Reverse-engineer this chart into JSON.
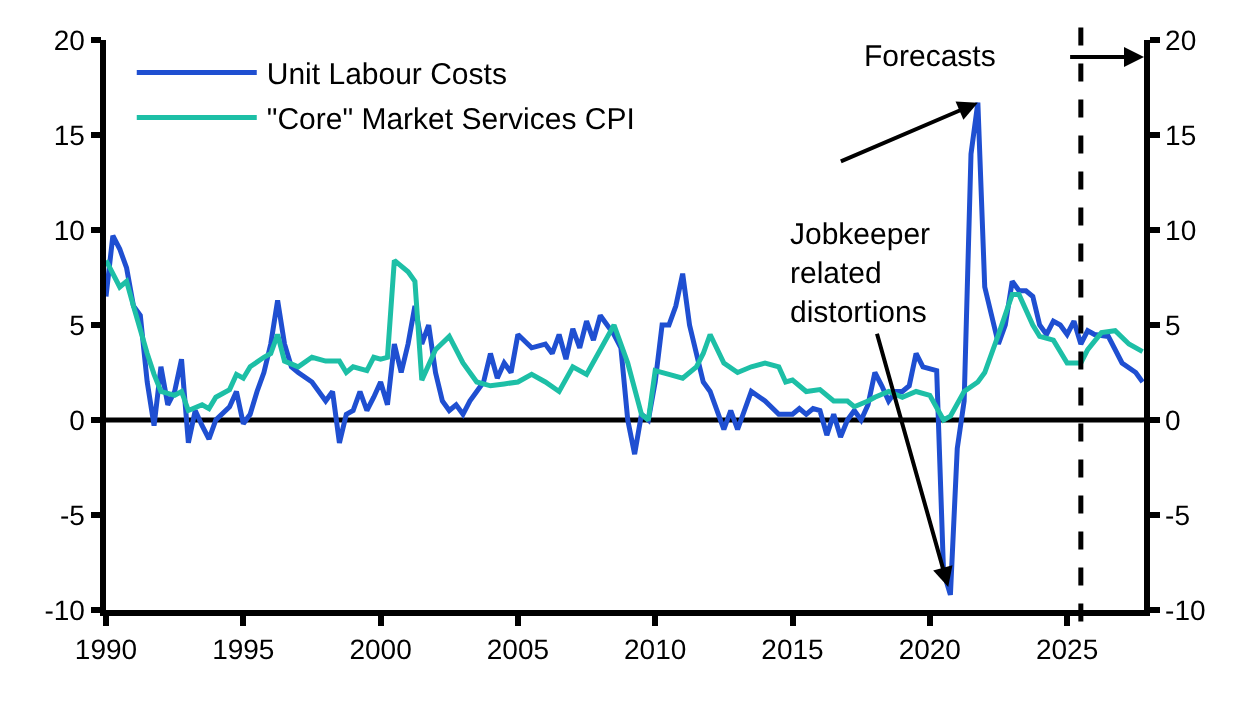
{
  "chart_data": {
    "type": "line",
    "x": [
      1990,
      1990.25,
      1990.5,
      1990.75,
      1991,
      1991.25,
      1991.5,
      1991.75,
      1992,
      1992.25,
      1992.5,
      1992.75,
      1993,
      1993.25,
      1993.5,
      1993.75,
      1994,
      1994.5,
      1994.75,
      1995,
      1995.25,
      1995.5,
      1995.75,
      1996,
      1996.25,
      1996.5,
      1996.75,
      1997,
      1997.5,
      1998,
      1998.25,
      1998.5,
      1998.75,
      1999,
      1999.25,
      1999.5,
      1999.75,
      2000,
      2000.25,
      2000.5,
      2000.75,
      2001,
      2001.25,
      2001.5,
      2001.75,
      2002,
      2002.25,
      2002.5,
      2002.75,
      2003,
      2003.25,
      2003.5,
      2003.75,
      2004,
      2004.25,
      2004.5,
      2004.75,
      2005,
      2005.5,
      2006,
      2006.25,
      2006.5,
      2006.75,
      2007,
      2007.25,
      2007.5,
      2007.75,
      2008,
      2008.5,
      2008.75,
      2009,
      2009.25,
      2009.5,
      2009.75,
      2010,
      2010.25,
      2010.5,
      2010.75,
      2011,
      2011.25,
      2011.75,
      2012,
      2012.5,
      2012.75,
      2013,
      2013.5,
      2014,
      2014.5,
      2015,
      2015.25,
      2015.5,
      2015.75,
      2016,
      2016.25,
      2016.5,
      2016.75,
      2017,
      2017.25,
      2017.5,
      2017.75,
      2018,
      2018.25,
      2018.5,
      2018.75,
      2019,
      2019.25,
      2019.5,
      2019.75,
      2020.25,
      2020.5,
      2020.75,
      2021,
      2021.25,
      2021.5,
      2021.75,
      2022,
      2022.25,
      2022.5,
      2022.75,
      2023,
      2023.25,
      2023.5,
      2023.75,
      2024,
      2024.25,
      2024.5,
      2024.75,
      2025,
      2025.25,
      2025.5,
      2025.75,
      2026,
      2026.5,
      2027,
      2027.5,
      2027.75
    ],
    "series": [
      {
        "name": "Unit Labour Costs",
        "color": "#1f4fd1",
        "values": [
          6.5,
          9.7,
          9,
          8,
          6,
          5.5,
          2,
          -0.3,
          2.8,
          0.8,
          1.5,
          3.2,
          -1.2,
          0.5,
          -0.3,
          -1,
          0,
          0.7,
          1.5,
          -0.2,
          0.3,
          1.5,
          2.5,
          4,
          6.3,
          4,
          2.8,
          2.5,
          2,
          1,
          1.5,
          -1.2,
          0.3,
          0.5,
          1.5,
          0.5,
          1.2,
          2,
          0.8,
          4,
          2.5,
          4,
          6,
          4,
          5,
          2.5,
          1,
          0.5,
          0.8,
          0.3,
          1,
          1.5,
          2,
          3.5,
          2.2,
          3,
          2.5,
          4.5,
          3.8,
          4,
          3.5,
          4.5,
          3.2,
          4.8,
          3.8,
          5.2,
          4.2,
          5.5,
          4.5,
          3.8,
          0,
          -1.8,
          0.3,
          0,
          2,
          5,
          5,
          6,
          7.7,
          5,
          2,
          1.5,
          -0.5,
          0.5,
          -0.5,
          1.5,
          1,
          0.3,
          0.3,
          0.6,
          0.3,
          0.6,
          0.5,
          -0.8,
          0.3,
          -0.9,
          0,
          0.5,
          0,
          0.8,
          2.5,
          1.8,
          1,
          1.5,
          1.5,
          1.8,
          3.5,
          2.8,
          2.6,
          -8,
          -9.2,
          -1.5,
          1,
          14,
          16.7,
          7,
          5.5,
          4,
          5,
          7.3,
          6.8,
          6.8,
          6.5,
          5,
          4.5,
          5.2,
          5,
          4.5,
          5.2,
          4,
          4.7,
          4.5,
          4.4,
          3,
          2.5,
          2
        ]
      },
      {
        "name": "\"Core\" Market Services CPI",
        "color": "#1dbfa6",
        "x": [
          1990,
          1990.5,
          1990.75,
          1991,
          1991.5,
          1991.75,
          1992,
          1992.5,
          1992.75,
          1993,
          1993.5,
          1993.75,
          1994,
          1994.5,
          1994.75,
          1995,
          1995.25,
          1995.75,
          1996,
          1996.25,
          1996.5,
          1997,
          1997.5,
          1998,
          1998.5,
          1998.75,
          1999,
          1999.5,
          1999.75,
          2000,
          2000.25,
          2000.5,
          2001,
          2001.25,
          2001.5,
          2002,
          2002.5,
          2003,
          2003.5,
          2004,
          2004.5,
          2005,
          2005.5,
          2006,
          2006.5,
          2007,
          2007.5,
          2008.5,
          2009,
          2009.5,
          2009.75,
          2010,
          2010.5,
          2011,
          2011.5,
          2011.75,
          2012,
          2012.5,
          2013,
          2013.5,
          2014,
          2014.5,
          2014.75,
          2015,
          2015.5,
          2016,
          2016.5,
          2017,
          2017.25,
          2017.75,
          2018,
          2018.5,
          2019,
          2019.5,
          2020,
          2020.5,
          2020.75,
          2021.25,
          2021.75,
          2022,
          2022.5,
          2023,
          2023.25,
          2023.75,
          2024,
          2024.5,
          2025,
          2025.5,
          2025.75,
          2026.25,
          2026.75,
          2027.25,
          2027.75
        ],
        "values": [
          8.4,
          7,
          7.3,
          6,
          3.5,
          2.4,
          1.5,
          1.3,
          1.5,
          0.5,
          0.8,
          0.6,
          1.2,
          1.6,
          2.4,
          2.2,
          2.8,
          3.3,
          3.5,
          4.5,
          3.1,
          2.8,
          3.3,
          3.1,
          3.1,
          2.5,
          2.8,
          2.6,
          3.3,
          3.2,
          3.3,
          8.4,
          7.8,
          7.3,
          2.1,
          3.7,
          4.4,
          3,
          2,
          1.8,
          1.9,
          2,
          2.4,
          2,
          1.5,
          2.8,
          2.4,
          5,
          3,
          0.3,
          0,
          2.6,
          2.4,
          2.2,
          2.8,
          3.5,
          4.5,
          3,
          2.5,
          2.8,
          3,
          2.8,
          2,
          2.1,
          1.5,
          1.6,
          1,
          1,
          0.7,
          1,
          1.2,
          1.5,
          1.2,
          1.5,
          1.3,
          0,
          0.2,
          1.5,
          2,
          2.5,
          4.5,
          6.6,
          6.6,
          5,
          4.4,
          4.2,
          3,
          3,
          3.7,
          4.6,
          4.7,
          4,
          3.6
        ]
      }
    ],
    "xlim": [
      1990,
      2027.8
    ],
    "xticks": [
      1990,
      1995,
      2000,
      2005,
      2010,
      2015,
      2020,
      2025
    ],
    "ylim": [
      -10,
      20
    ],
    "yticks": [
      -10,
      -5,
      0,
      5,
      10,
      15,
      20
    ],
    "y2lim": [
      -10,
      20
    ],
    "y2ticks": [
      -10,
      -5,
      0,
      5,
      10,
      15,
      20
    ],
    "ref_lines": [
      {
        "axis": "y",
        "value": 0,
        "color": "#000000",
        "line_style": "solid"
      },
      {
        "axis": "x",
        "value": 2025.5,
        "label": "Forecasts",
        "color": "#000000",
        "line_style": "dashed"
      }
    ],
    "annotations": [
      {
        "text": "Jobkeeper\nrelated\ndistortions",
        "x": 2020.75,
        "y": -9.2
      }
    ],
    "grid": false,
    "legend": "top left",
    "line_style": "solid",
    "marker": "none"
  }
}
